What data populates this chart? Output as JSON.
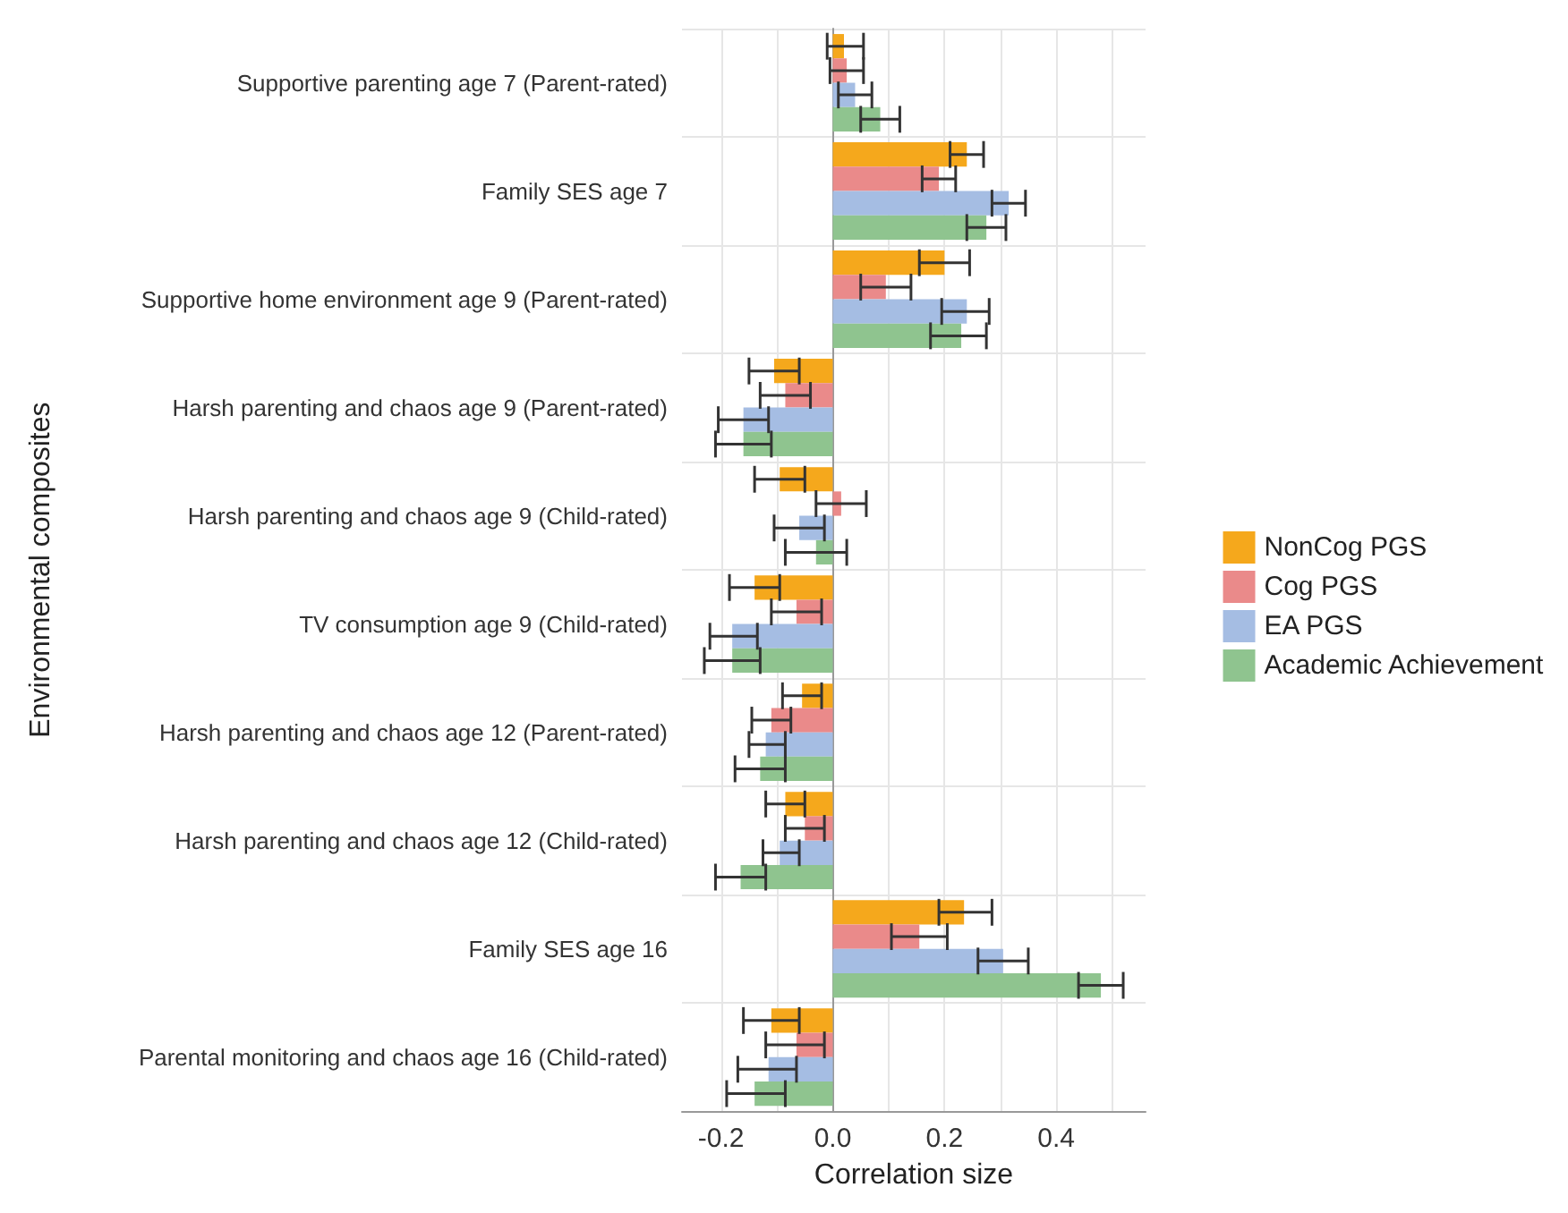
{
  "chart_data": {
    "type": "bar",
    "orientation": "horizontal",
    "xlabel": "Correlation size",
    "ylabel": "Environmental composites",
    "categories": [
      "Supportive parenting age 7 (Parent-rated)",
      "Family SES age 7",
      "Supportive home environment age 9 (Parent-rated)",
      "Harsh parenting and chaos age 9 (Parent-rated)",
      "Harsh parenting and chaos age 9 (Child-rated)",
      "TV consumption age 9 (Child-rated)",
      "Harsh parenting and chaos age 12 (Parent-rated)",
      "Harsh parenting and chaos age 12 (Child-rated)",
      "Family SES age 16",
      "Parental monitoring and chaos age 16 (Child-rated)"
    ],
    "series": [
      {
        "name": "NonCog PGS",
        "color": "#f5a81c",
        "values": [
          0.02,
          0.24,
          0.2,
          -0.105,
          -0.095,
          -0.14,
          -0.055,
          -0.085,
          0.235,
          -0.11
        ],
        "errors": [
          [
            -0.01,
            0.055
          ],
          [
            0.21,
            0.27
          ],
          [
            0.155,
            0.245
          ],
          [
            -0.15,
            -0.06
          ],
          [
            -0.14,
            -0.05
          ],
          [
            -0.185,
            -0.095
          ],
          [
            -0.09,
            -0.02
          ],
          [
            -0.12,
            -0.05
          ],
          [
            0.19,
            0.285
          ],
          [
            -0.16,
            -0.06
          ]
        ]
      },
      {
        "name": "Cog PGS",
        "color": "#ea8a8a",
        "values": [
          0.025,
          0.19,
          0.095,
          -0.085,
          0.015,
          -0.065,
          -0.11,
          -0.05,
          0.155,
          -0.065
        ],
        "errors": [
          [
            -0.005,
            0.055
          ],
          [
            0.16,
            0.22
          ],
          [
            0.05,
            0.14
          ],
          [
            -0.13,
            -0.04
          ],
          [
            -0.03,
            0.06
          ],
          [
            -0.11,
            -0.02
          ],
          [
            -0.145,
            -0.075
          ],
          [
            -0.085,
            -0.015
          ],
          [
            0.105,
            0.205
          ],
          [
            -0.12,
            -0.015
          ]
        ]
      },
      {
        "name": "EA PGS",
        "color": "#a5bde3",
        "values": [
          0.04,
          0.315,
          0.24,
          -0.16,
          -0.06,
          -0.18,
          -0.12,
          -0.095,
          0.305,
          -0.115
        ],
        "errors": [
          [
            0.01,
            0.07
          ],
          [
            0.285,
            0.345
          ],
          [
            0.195,
            0.28
          ],
          [
            -0.205,
            -0.115
          ],
          [
            -0.105,
            -0.015
          ],
          [
            -0.22,
            -0.135
          ],
          [
            -0.15,
            -0.085
          ],
          [
            -0.125,
            -0.06
          ],
          [
            0.26,
            0.35
          ],
          [
            -0.17,
            -0.065
          ]
        ]
      },
      {
        "name": "Academic Achievement",
        "color": "#8fc48f",
        "values": [
          0.085,
          0.275,
          0.23,
          -0.16,
          -0.03,
          -0.18,
          -0.13,
          -0.165,
          0.48,
          -0.14
        ],
        "errors": [
          [
            0.05,
            0.12
          ],
          [
            0.24,
            0.31
          ],
          [
            0.175,
            0.275
          ],
          [
            -0.21,
            -0.11
          ],
          [
            -0.085,
            0.025
          ],
          [
            -0.23,
            -0.13
          ],
          [
            -0.175,
            -0.085
          ],
          [
            -0.21,
            -0.12
          ],
          [
            0.44,
            0.52
          ],
          [
            -0.19,
            -0.085
          ]
        ]
      }
    ],
    "xlim": [
      -0.27,
      0.56
    ],
    "xticks": [
      {
        "value": -0.2,
        "label": "-0.2"
      },
      {
        "value": -0.1,
        "label": null
      },
      {
        "value": 0,
        "label": "0.0"
      },
      {
        "value": 0.1,
        "label": null
      },
      {
        "value": 0.2,
        "label": "0.2"
      },
      {
        "value": 0.3,
        "label": null
      },
      {
        "value": 0.4,
        "label": "0.4"
      },
      {
        "value": 0.5,
        "label": null
      }
    ],
    "grid": true,
    "legend": "right"
  }
}
